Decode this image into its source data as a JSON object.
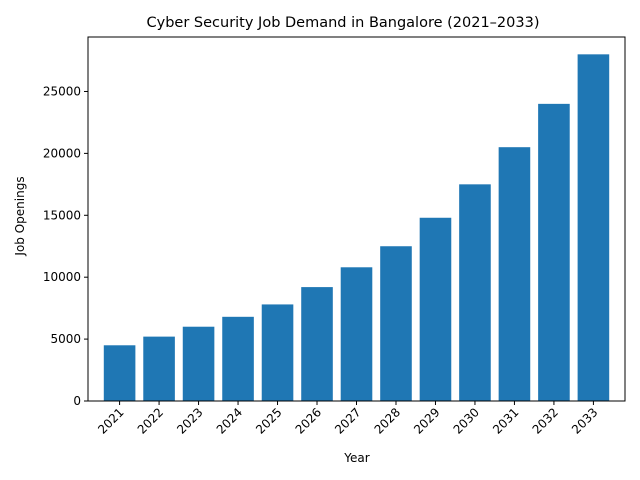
{
  "chart_data": {
    "type": "bar",
    "title": "Cyber Security Job Demand in Bangalore (2021–2033)",
    "xlabel": "Year",
    "ylabel": "Job Openings",
    "categories": [
      "2021",
      "2022",
      "2023",
      "2024",
      "2025",
      "2026",
      "2027",
      "2028",
      "2029",
      "2030",
      "2031",
      "2032",
      "2033"
    ],
    "values": [
      4500,
      5200,
      6000,
      6800,
      7800,
      9200,
      10800,
      12500,
      14800,
      17500,
      20500,
      24000,
      28000
    ],
    "ylim": [
      0,
      29400
    ],
    "yticks": [
      0,
      5000,
      10000,
      15000,
      20000,
      25000
    ],
    "grid": false,
    "bar_color": "#1f77b4"
  }
}
